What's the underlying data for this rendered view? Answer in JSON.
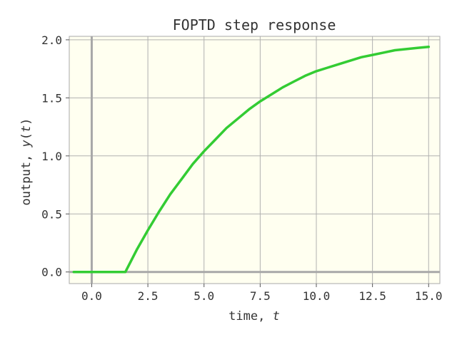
{
  "chart_data": {
    "type": "line",
    "title": "FOPTD step response",
    "xlabel": {
      "text": "time, ",
      "var": "t"
    },
    "ylabel": {
      "text": "output, ",
      "var": "y",
      "open": "(",
      "arg": "t",
      "close": ")"
    },
    "xlim": [
      -1.0,
      15.5
    ],
    "ylim": [
      -0.1,
      2.03
    ],
    "x_ticks": [
      0.0,
      2.5,
      5.0,
      7.5,
      10.0,
      12.5,
      15.0
    ],
    "x_tick_labels": [
      "0.0",
      "2.5",
      "5.0",
      "7.5",
      "10.0",
      "12.5",
      "15.0"
    ],
    "y_ticks": [
      0.0,
      0.5,
      1.0,
      1.5,
      2.0
    ],
    "y_tick_labels": [
      "0.0",
      "0.5",
      "1.0",
      "1.5",
      "2.0"
    ],
    "grid": true,
    "reference_lines": {
      "x": 0,
      "y": 0
    },
    "colors": {
      "background": "#fffff0",
      "line": "#33cc33",
      "grid": "#b0b0b0",
      "reference": "#a8a8a8",
      "spine": "#aaaaaa"
    },
    "series": [
      {
        "x": [
          -0.8,
          0.0,
          1.0,
          1.4,
          1.5,
          2.0,
          2.5,
          3.0,
          3.5,
          4.0,
          4.5,
          5.0,
          5.5,
          6.0,
          6.5,
          7.0,
          7.5,
          8.0,
          8.5,
          9.0,
          9.5,
          10.0,
          10.5,
          11.0,
          11.5,
          12.0,
          12.5,
          13.0,
          13.5,
          14.0,
          14.5,
          15.0
        ],
        "y": [
          0.0,
          0.0,
          0.0,
          0.0,
          0.0,
          0.19,
          0.36,
          0.52,
          0.67,
          0.8,
          0.93,
          1.04,
          1.14,
          1.24,
          1.32,
          1.4,
          1.47,
          1.53,
          1.59,
          1.64,
          1.69,
          1.73,
          1.76,
          1.79,
          1.82,
          1.85,
          1.87,
          1.89,
          1.91,
          1.92,
          1.93,
          1.94
        ]
      }
    ]
  }
}
